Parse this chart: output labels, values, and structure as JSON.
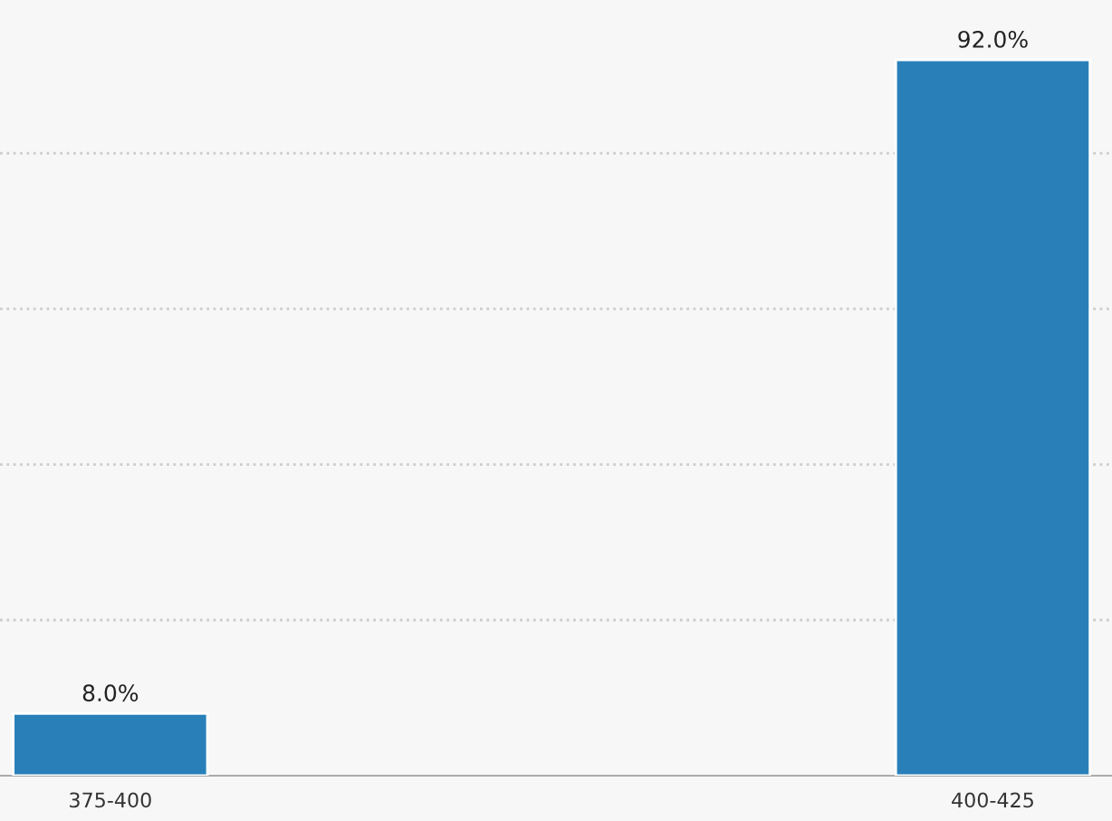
{
  "chart_data": {
    "type": "bar",
    "categories": [
      "375-400",
      "400-425"
    ],
    "values": [
      8,
      92
    ],
    "value_labels": [
      "8.0%",
      "92.0%"
    ],
    "color": "#2980b9",
    "ylim": [
      0,
      100
    ],
    "yticks": [
      {
        "value": 20,
        "label": null
      },
      {
        "value": 40,
        "label": null
      },
      {
        "value": 60,
        "label": null
      },
      {
        "value": 80,
        "label": null
      }
    ],
    "tick_labels": "x",
    "grid": "y",
    "line_style": "dotted"
  }
}
